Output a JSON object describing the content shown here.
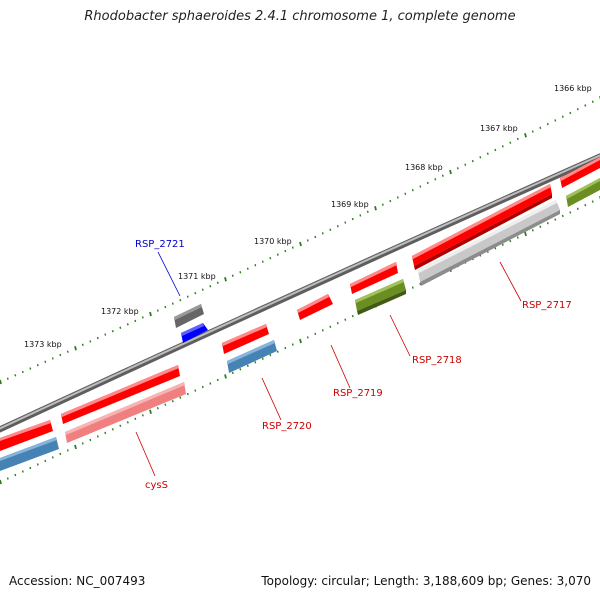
{
  "header": {
    "title": "Rhodobacter sphaeroides 2.4.1 chromosome 1, complete genome"
  },
  "footer": {
    "accession": "Accession: NC_007493",
    "summary": "Topology: circular; Length: 3,188,609 bp; Genes: 3,070"
  },
  "scale": {
    "ticks": [
      {
        "label": "1366 kbp"
      },
      {
        "label": "1367 kbp"
      },
      {
        "label": "1368 kbp"
      },
      {
        "label": "1369 kbp"
      },
      {
        "label": "1370 kbp"
      },
      {
        "label": "1371 kbp"
      },
      {
        "label": "1372 kbp"
      },
      {
        "label": "1373 kbp"
      }
    ]
  },
  "genes": [
    {
      "label": "RSP_2717",
      "color": "#cc0000"
    },
    {
      "label": "RSP_2718",
      "color": "#cc0000"
    },
    {
      "label": "RSP_2719",
      "color": "#cc0000"
    },
    {
      "label": "RSP_2720",
      "color": "#cc0000"
    },
    {
      "label": "RSP_2721",
      "color": "#0000cc"
    },
    {
      "label": "cysS",
      "color": "#cc0000"
    }
  ],
  "colors": {
    "backbone": "#8c8c8c",
    "tick": "#2e7d1e",
    "cds_red": "#ff0000",
    "cds_pink": "#f08080",
    "cds_steel": "#4682b4",
    "cds_olive": "#6b8e23",
    "cds_silver": "#c0c0c0",
    "cds_gray": "#666666",
    "cds_blue": "#0000ff"
  }
}
